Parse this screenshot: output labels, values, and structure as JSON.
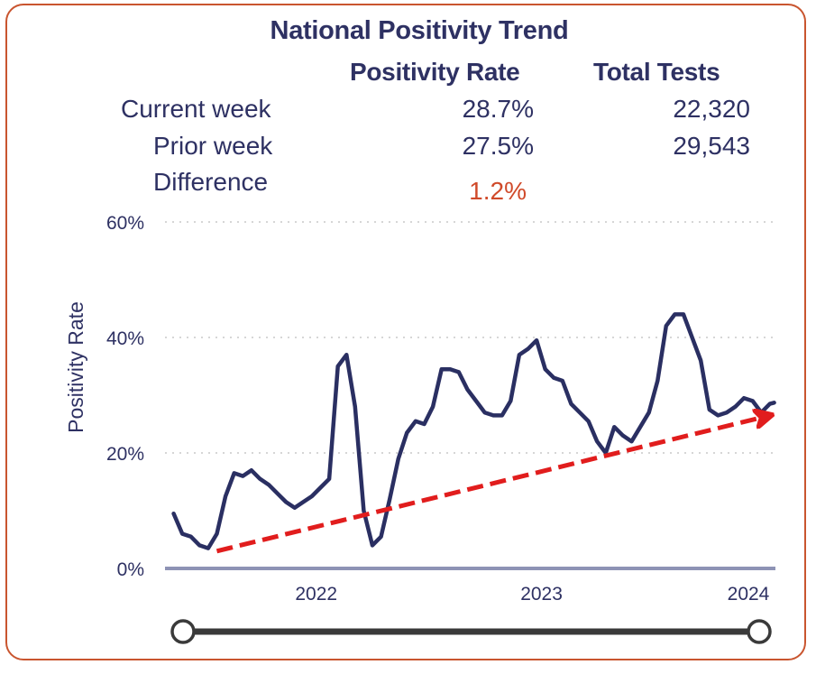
{
  "summary": {
    "title": "National Positivity Trend",
    "columns": [
      "Positivity Rate",
      "Total Tests"
    ],
    "rows": [
      {
        "label": "Current week",
        "rate": "28.7%",
        "tests": "22,320"
      },
      {
        "label": "Prior week",
        "rate": "27.5%",
        "tests": "29,543"
      },
      {
        "label": "Difference",
        "rate": "1.2%",
        "tests": ""
      }
    ]
  },
  "colors": {
    "border": "#c9552f",
    "text": "#2e3163",
    "line": "#2a2f62",
    "trend_arrow": "#e11d1d",
    "difference": "#d04a2a",
    "baseline": "#8e93b5",
    "slider": "#3a3a3a"
  },
  "chart_data": {
    "type": "line",
    "title": "",
    "xlabel": "",
    "ylabel": "Positivity Rate",
    "ylim": [
      0,
      60
    ],
    "yticks": [
      0,
      20,
      40,
      60
    ],
    "ytick_labels": [
      "0%",
      "20%",
      "40%",
      "60%"
    ],
    "xlim": [
      "2021-05-01",
      "2024-01-15"
    ],
    "xticks": [
      "2022-01-01",
      "2023-01-01",
      "2024-01-01"
    ],
    "xtick_labels": [
      "2022",
      "2023",
      "2024"
    ],
    "grid": "horizontal-dotted",
    "series": [
      {
        "name": "",
        "points": [
          [
            "2021-05-15",
            9.5
          ],
          [
            "2021-05-29",
            6.0
          ],
          [
            "2021-06-12",
            5.5
          ],
          [
            "2021-06-26",
            4.0
          ],
          [
            "2021-07-10",
            3.5
          ],
          [
            "2021-07-24",
            6.0
          ],
          [
            "2021-08-07",
            12.5
          ],
          [
            "2021-08-21",
            16.5
          ],
          [
            "2021-09-04",
            16.0
          ],
          [
            "2021-09-18",
            17.0
          ],
          [
            "2021-10-02",
            15.5
          ],
          [
            "2021-10-16",
            14.5
          ],
          [
            "2021-10-30",
            13.0
          ],
          [
            "2021-11-13",
            11.5
          ],
          [
            "2021-11-27",
            10.5
          ],
          [
            "2021-12-11",
            11.5
          ],
          [
            "2021-12-25",
            12.5
          ],
          [
            "2022-01-08",
            14.0
          ],
          [
            "2022-01-22",
            15.5
          ],
          [
            "2022-02-05",
            35.0
          ],
          [
            "2022-02-19",
            37.0
          ],
          [
            "2022-03-05",
            28.0
          ],
          [
            "2022-03-19",
            10.0
          ],
          [
            "2022-04-02",
            4.0
          ],
          [
            "2022-04-16",
            5.5
          ],
          [
            "2022-04-30",
            12.0
          ],
          [
            "2022-05-14",
            19.0
          ],
          [
            "2022-05-28",
            23.5
          ],
          [
            "2022-06-11",
            25.5
          ],
          [
            "2022-06-25",
            25.0
          ],
          [
            "2022-07-09",
            28.0
          ],
          [
            "2022-07-23",
            34.5
          ],
          [
            "2022-08-06",
            34.5
          ],
          [
            "2022-08-20",
            34.0
          ],
          [
            "2022-09-03",
            31.0
          ],
          [
            "2022-09-17",
            29.0
          ],
          [
            "2022-10-01",
            27.0
          ],
          [
            "2022-10-15",
            26.5
          ],
          [
            "2022-10-29",
            26.5
          ],
          [
            "2022-11-12",
            29.0
          ],
          [
            "2022-11-26",
            37.0
          ],
          [
            "2022-12-10",
            38.0
          ],
          [
            "2022-12-24",
            39.5
          ],
          [
            "2023-01-07",
            34.5
          ],
          [
            "2023-01-21",
            33.0
          ],
          [
            "2023-02-04",
            32.5
          ],
          [
            "2023-02-18",
            28.5
          ],
          [
            "2023-03-04",
            27.0
          ],
          [
            "2023-03-18",
            25.5
          ],
          [
            "2023-04-01",
            22.0
          ],
          [
            "2023-04-15",
            20.0
          ],
          [
            "2023-04-29",
            24.5
          ],
          [
            "2023-05-13",
            23.0
          ],
          [
            "2023-05-27",
            22.0
          ],
          [
            "2023-06-10",
            24.5
          ],
          [
            "2023-06-24",
            27.0
          ],
          [
            "2023-07-08",
            32.5
          ],
          [
            "2023-07-22",
            42.0
          ],
          [
            "2023-08-05",
            44.0
          ],
          [
            "2023-08-19",
            44.0
          ],
          [
            "2023-09-02",
            40.0
          ],
          [
            "2023-09-16",
            36.0
          ],
          [
            "2023-09-30",
            27.5
          ],
          [
            "2023-10-14",
            26.5
          ],
          [
            "2023-10-28",
            27.0
          ],
          [
            "2023-11-11",
            28.0
          ],
          [
            "2023-11-25",
            29.5
          ],
          [
            "2023-12-09",
            29.0
          ],
          [
            "2023-12-23",
            27.0
          ],
          [
            "2024-01-06",
            28.5
          ],
          [
            "2024-01-13",
            28.7
          ]
        ]
      }
    ],
    "trend_arrow": {
      "from": [
        "2021-07-24",
        3.0
      ],
      "to": [
        "2024-01-15",
        26.5
      ],
      "style": "dashed"
    },
    "range_slider": {
      "start": "2021-05-01",
      "end": "2024-01-15"
    }
  }
}
